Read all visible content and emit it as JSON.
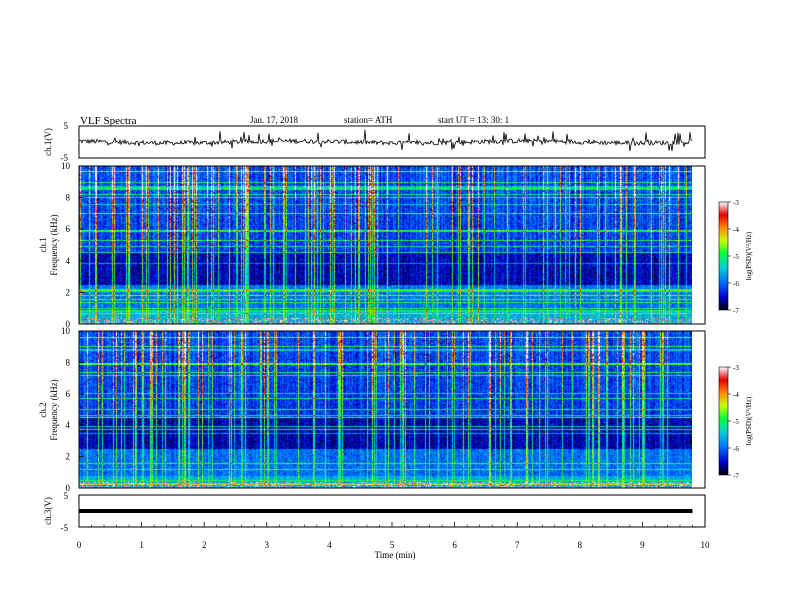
{
  "header": {
    "title": "VLF  Spectra",
    "date": "Jan. 17, 2018",
    "station": "station= ATH",
    "start": "start  UT  =    13: 30: 1"
  },
  "colors": {
    "colormap": [
      "#000000",
      "#0000d0",
      "#0078ff",
      "#00d2d2",
      "#00ff3c",
      "#c8ff00",
      "#ff8c00",
      "#e00000",
      "#ffffff"
    ],
    "trace": "#000000",
    "axes": "#000000"
  },
  "chart_data": [
    {
      "type": "line",
      "panel": "ch1_waveform",
      "ylabel": "ch.1(V)",
      "ylim": [
        -5,
        5
      ],
      "yticks": [
        "5",
        "-5"
      ],
      "description_note": "noisy waveform centered near 0 V with spikes up to ~5 V"
    },
    {
      "type": "heatmap",
      "panel": "ch1_spectrogram",
      "ylabel": "ch.1",
      "ylabel2": "Frequency  (kHz)",
      "ylim": [
        0,
        10
      ],
      "yticks": [
        "0",
        "2",
        "4",
        "6",
        "8",
        "10"
      ],
      "colorbar": {
        "label": "log(PSD)(V²/Hz)",
        "range": [
          -7,
          -3
        ],
        "ticks": [
          "-3",
          "-4",
          "-5",
          "-6",
          "-7"
        ]
      }
    },
    {
      "type": "heatmap",
      "panel": "ch2_spectrogram",
      "ylabel": "ch.2",
      "ylabel2": "Frequency  (kHz)",
      "ylim": [
        0,
        10
      ],
      "yticks": [
        "0",
        "2",
        "4",
        "6",
        "8",
        "10"
      ],
      "colorbar": {
        "label": "log(PSD)(V²/Hz)",
        "range": [
          -7,
          -3
        ],
        "ticks": [
          "-3",
          "-4",
          "-5",
          "-6",
          "-7"
        ]
      }
    },
    {
      "type": "line",
      "panel": "ch3_waveform",
      "ylabel": "ch.3(V)",
      "ylim": [
        -5,
        5
      ],
      "yticks": [
        "5",
        "-5"
      ],
      "flat_value": 0
    }
  ],
  "xaxis": {
    "label": "Time  (min)",
    "range": [
      0,
      10
    ],
    "ticks": [
      "0",
      "1",
      "2",
      "3",
      "4",
      "5",
      "6",
      "7",
      "8",
      "9",
      "10"
    ],
    "data_end": 9.8
  }
}
